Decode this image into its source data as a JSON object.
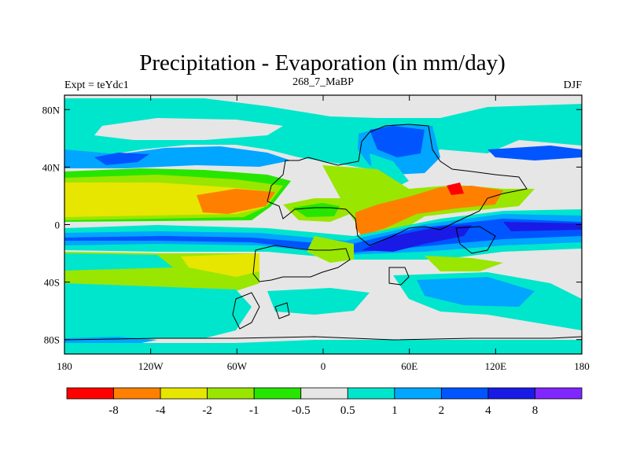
{
  "chart_data": {
    "type": "heatmap",
    "title": "Precipitation - Evaporation (in mm/day)",
    "left_label": "Expt = teYdc1",
    "center_label": "268_7_MaBP",
    "right_label": "DJF",
    "xlim": [
      -180,
      180
    ],
    "ylim": [
      -90,
      90
    ],
    "x_ticks": [
      {
        "value": -180,
        "label": "180"
      },
      {
        "value": -120,
        "label": "120W"
      },
      {
        "value": -60,
        "label": "60W"
      },
      {
        "value": 0,
        "label": "0"
      },
      {
        "value": 60,
        "label": "60E"
      },
      {
        "value": 120,
        "label": "120E"
      },
      {
        "value": 180,
        "label": "180"
      }
    ],
    "y_ticks": [
      {
        "value": 80,
        "label": "80N"
      },
      {
        "value": 40,
        "label": "40N"
      },
      {
        "value": 0,
        "label": "0"
      },
      {
        "value": -40,
        "label": "40S"
      },
      {
        "value": -80,
        "label": "80S"
      }
    ],
    "levels": [
      "-8",
      "-4",
      "-2",
      "-1",
      "-0.5",
      "0.5",
      "1",
      "2",
      "4",
      "8"
    ],
    "colors": [
      "#ff0000",
      "#ff8000",
      "#e6e600",
      "#99e600",
      "#26e600",
      "#e6e6e6",
      "#00e6cc",
      "#00a6ff",
      "#0055ff",
      "#1a1ae6",
      "#8026ff"
    ],
    "grid": false
  }
}
